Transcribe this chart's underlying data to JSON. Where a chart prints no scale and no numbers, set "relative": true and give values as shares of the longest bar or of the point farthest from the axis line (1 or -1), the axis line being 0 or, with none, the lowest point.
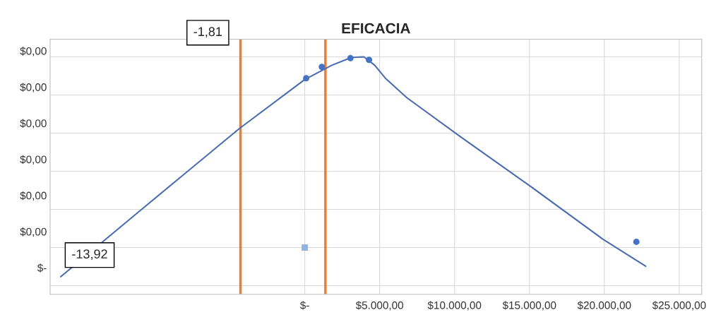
{
  "chart_data": {
    "type": "scatter",
    "title": "EFICACIA",
    "relative": true,
    "series": [
      {
        "color": "#4472c4",
        "marker": "circle",
        "x": [
          95,
          1140,
          3050,
          4290,
          22140
        ],
        "values": [
          0.888,
          0.947,
          0.993,
          0.984,
          0.03
        ]
      },
      {
        "type": "scatter",
        "color": "#8fb4e3",
        "marker": "square",
        "x": [
          0
        ],
        "values": [
          0
        ]
      },
      {
        "type": "line",
        "color": "#4a6bb0",
        "marker": "none",
        "line_style": "solid",
        "x": [
          -16290,
          -11050,
          -4380,
          0,
          1810,
          3100,
          3950,
          4670,
          5380,
          6810,
          10380,
          15140,
          19900,
          22760
        ],
        "values": [
          -0.153,
          0.19,
          0.623,
          0.881,
          0.956,
          0.996,
          1,
          0.956,
          0.888,
          0.786,
          0.582,
          0.317,
          0.044,
          -0.098
        ]
      }
    ],
    "xlim": [
      -17000,
      26500
    ],
    "xticks": [
      {
        "value": 0,
        "label": "$-"
      },
      {
        "value": 5000,
        "label": "$5.000,00"
      },
      {
        "value": 10000,
        "label": "$10.000,00"
      },
      {
        "value": 15000,
        "label": "$15.000,00"
      },
      {
        "value": 20000,
        "label": "$20.000,00"
      },
      {
        "value": 25000,
        "label": "$25.000,00"
      }
    ],
    "grid": true,
    "ref_lines": [
      {
        "axis": "x",
        "value": -4290,
        "color": "#ed7d31"
      },
      {
        "axis": "x",
        "value": 1380,
        "color": "#ed7d31"
      }
    ],
    "annotations": [
      "-1,81",
      "-13,92",
      "$0,00",
      "$0,00",
      "$0,00",
      "$0,00",
      "$0,00",
      "$0,00",
      "$-"
    ]
  }
}
